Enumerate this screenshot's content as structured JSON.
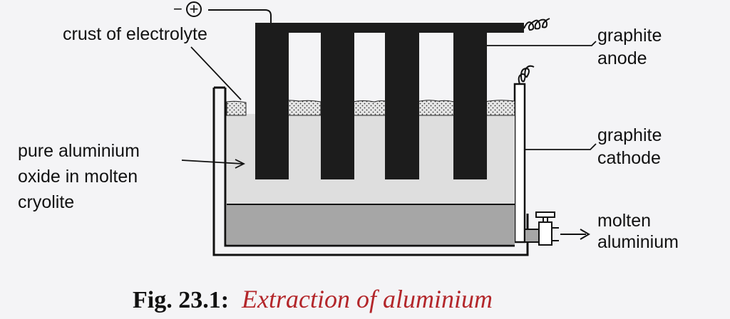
{
  "diagram": {
    "terminal_sign": "−",
    "terminal_symbol": "+",
    "labels": {
      "crust": "crust of electrolyte",
      "anode_line1": "graphite",
      "anode_line2": "anode",
      "oxide_line1": "pure aluminium",
      "oxide_line2": "oxide in molten",
      "oxide_line3": "cryolite",
      "cathode_line1": "graphite",
      "cathode_line2": "cathode",
      "metal_line1": "molten",
      "metal_line2": "aluminium"
    },
    "caption": {
      "number": "Fig. 23.1:",
      "title": "Extraction of aluminium"
    },
    "colors": {
      "anode": "#1c1c1c",
      "electrolyte": "#dedede",
      "molten_aluminium": "#a6a6a6",
      "caption_title": "#b3262a"
    }
  }
}
